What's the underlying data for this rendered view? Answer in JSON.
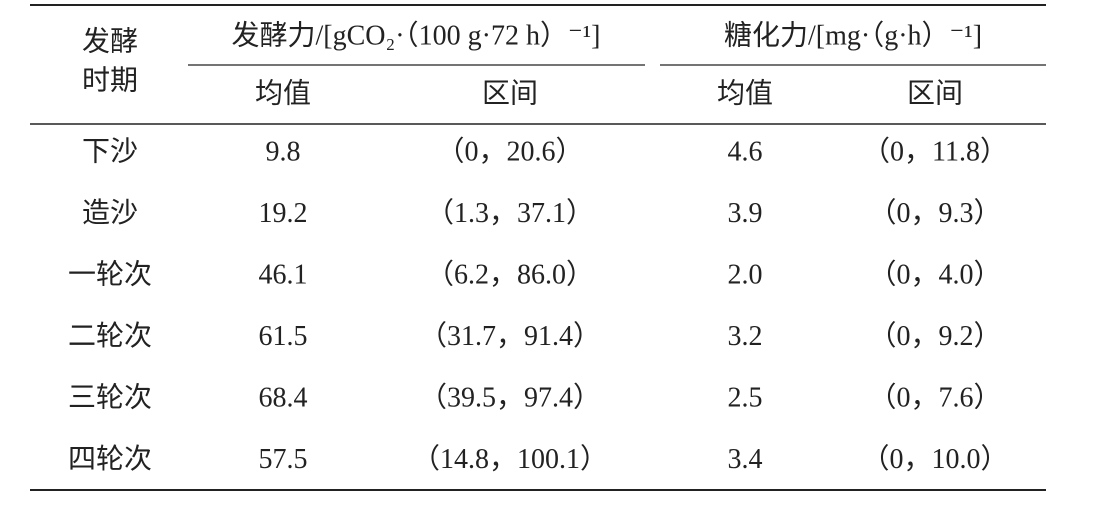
{
  "table": {
    "row_header": [
      "发酵",
      "时期"
    ],
    "groups": [
      "发酵力/[gCO₂·（100 g·72 h）⁻¹]",
      "糖化力/[mg·（g·h）⁻¹]"
    ],
    "subheaders": [
      "均值",
      "区间",
      "均值",
      "区间"
    ],
    "rows": [
      [
        "下沙",
        "9.8",
        "（0，20.6）",
        "4.6",
        "（0，11.8）"
      ],
      [
        "造沙",
        "19.2",
        "（1.3，37.1）",
        "3.9",
        "（0，9.3）"
      ],
      [
        "一轮次",
        "46.1",
        "（6.2，86.0）",
        "2.0",
        "（0，4.0）"
      ],
      [
        "二轮次",
        "61.5",
        "（31.7，91.4）",
        "3.2",
        "（0，9.2）"
      ],
      [
        "三轮次",
        "68.4",
        "（39.5，97.4）",
        "2.5",
        "（0，7.6）"
      ],
      [
        "四轮次",
        "57.5",
        "（14.8，100.1）",
        "3.4",
        "（0，10.0）"
      ]
    ]
  }
}
